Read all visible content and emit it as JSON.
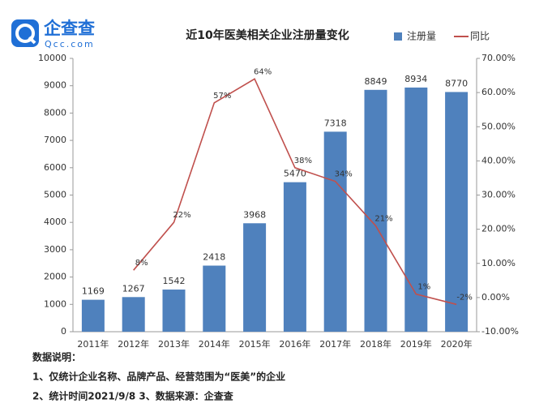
{
  "logo": {
    "name": "企查查",
    "domain": "Qcc.com"
  },
  "chart_data": {
    "type": "bar",
    "title": "近10年医美相关企业注册量变化",
    "categories": [
      "2011年",
      "2012年",
      "2013年",
      "2014年",
      "2015年",
      "2016年",
      "2017年",
      "2018年",
      "2019年",
      "2020年"
    ],
    "series": [
      {
        "name": "注册量",
        "type": "bar",
        "color": "#4f81bd",
        "values": [
          1169,
          1267,
          1542,
          2418,
          3968,
          5470,
          7318,
          8849,
          8934,
          8770
        ]
      },
      {
        "name": "同比",
        "type": "line",
        "axis": "y2",
        "color": "#c0504d",
        "values": [
          null,
          8,
          22,
          57,
          64,
          38,
          34,
          21,
          1,
          -2
        ],
        "value_labels": [
          null,
          "8%",
          "22%",
          "57%",
          "64%",
          "38%",
          "34%",
          "21%",
          "1%",
          "-2%"
        ]
      }
    ],
    "ylim": [
      0,
      10000
    ],
    "yticks": [
      0,
      1000,
      2000,
      3000,
      4000,
      5000,
      6000,
      7000,
      8000,
      9000,
      10000
    ],
    "y2lim": [
      -10,
      70
    ],
    "y2ticks": [
      {
        "value": -10,
        "label": "-10.00%"
      },
      {
        "value": 0,
        "label": "0.00%"
      },
      {
        "value": 10,
        "label": "10.00%"
      },
      {
        "value": 20,
        "label": "20.00%"
      },
      {
        "value": 30,
        "label": "30.00%"
      },
      {
        "value": 40,
        "label": "40.00%"
      },
      {
        "value": 50,
        "label": "50.00%"
      },
      {
        "value": 60,
        "label": "60.00%"
      },
      {
        "value": 70,
        "label": "70.00%"
      }
    ],
    "legend": "top-right"
  },
  "notes": {
    "heading": "数据说明：",
    "lines": [
      "1、仅统计企业名称、品牌产品、经营范围为“医美”的企业",
      "2、统计时间2021/9/8  3、数据来源：企查查"
    ]
  }
}
